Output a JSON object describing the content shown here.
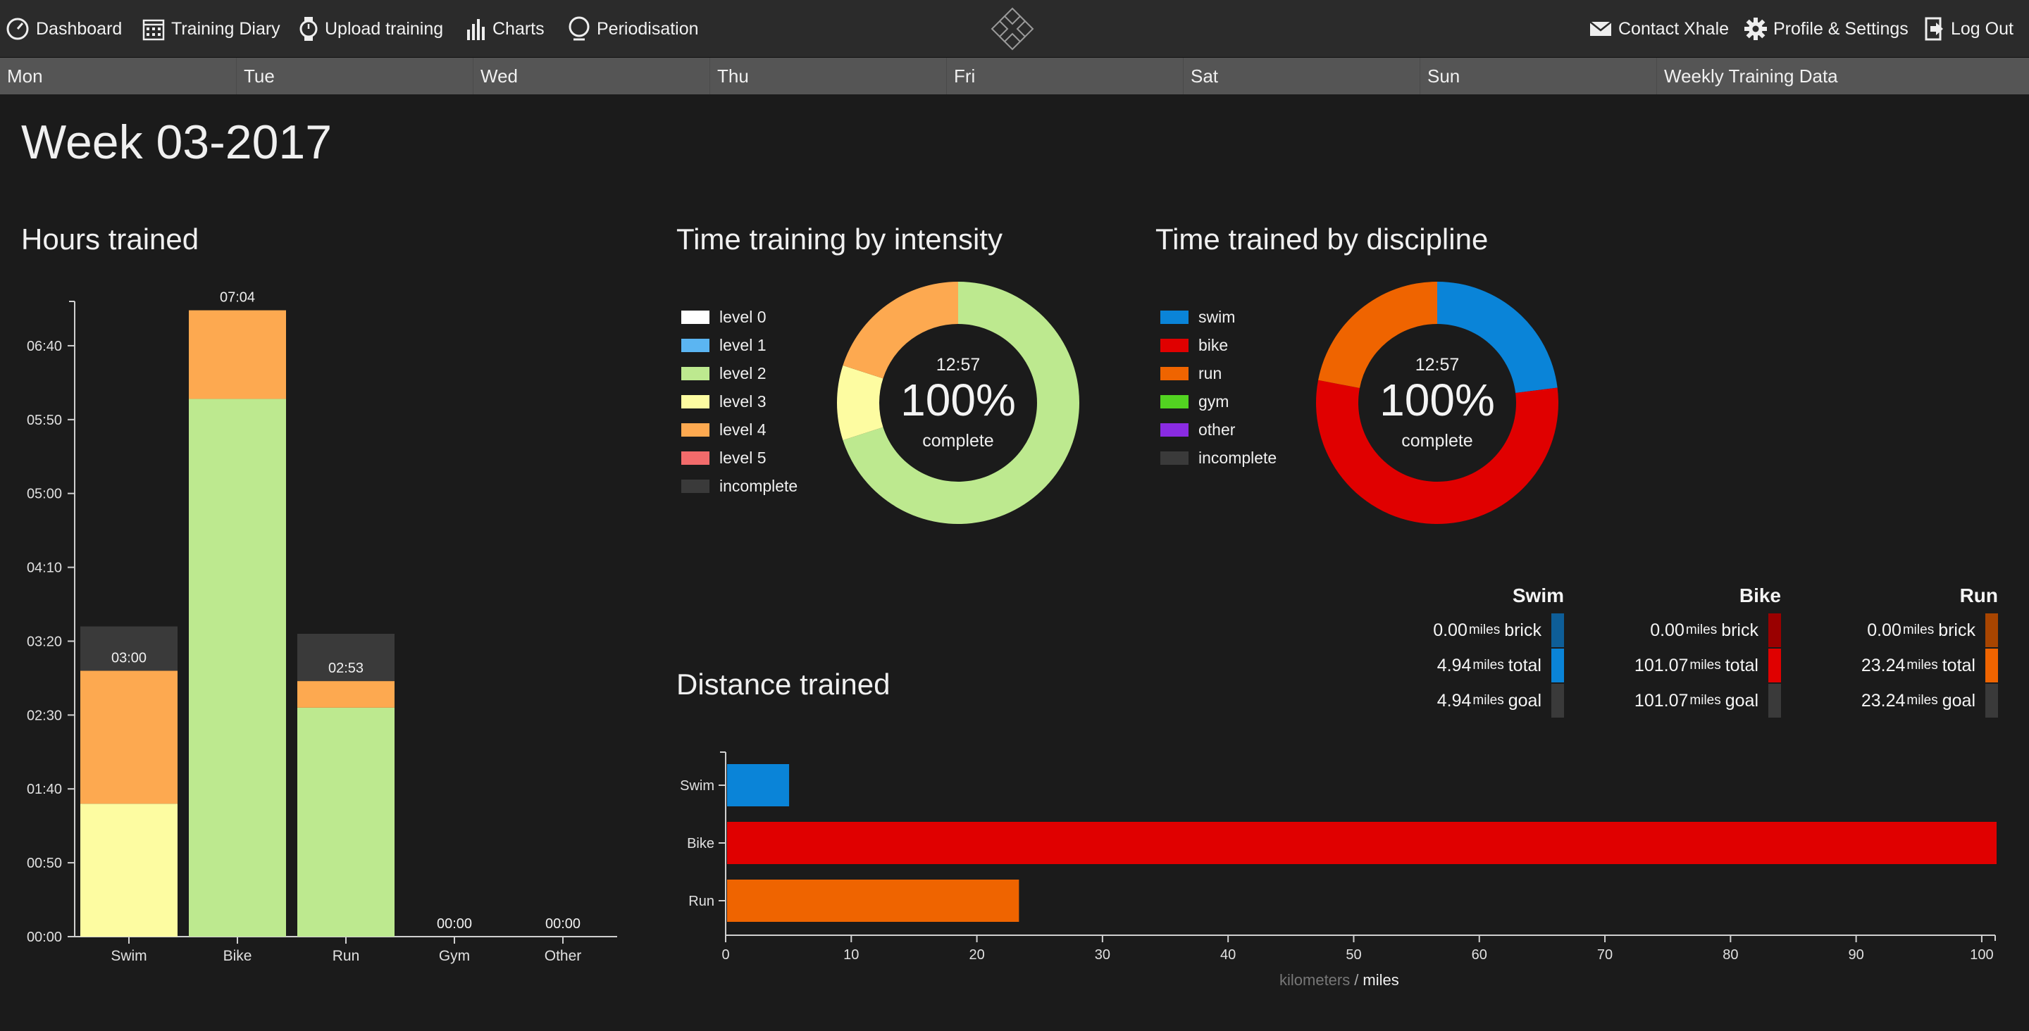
{
  "nav": {
    "dashboard": "Dashboard",
    "training_diary": "Training Diary",
    "upload_training": "Upload training",
    "charts": "Charts",
    "periodisation": "Periodisation",
    "contact": "Contact Xhale",
    "profile": "Profile & Settings",
    "logout": "Log Out"
  },
  "days": [
    "Mon",
    "Tue",
    "Wed",
    "Thu",
    "Fri",
    "Sat",
    "Sun",
    "Weekly Training Data"
  ],
  "week_title": "Week 03-2017",
  "hours": {
    "title": "Hours trained",
    "y_ticks": [
      "00:00",
      "00:50",
      "01:40",
      "02:30",
      "03:20",
      "04:10",
      "05:00",
      "05:50",
      "06:40"
    ]
  },
  "intensity": {
    "title": "Time training by intensity",
    "legend": [
      {
        "label": "level 0",
        "color": "#ffffff"
      },
      {
        "label": "level 1",
        "color": "#5bb5f2"
      },
      {
        "label": "level 2",
        "color": "#bde98f"
      },
      {
        "label": "level 3",
        "color": "#fdfca1"
      },
      {
        "label": "level 4",
        "color": "#fda950"
      },
      {
        "label": "level 5",
        "color": "#f26b6b"
      },
      {
        "label": "incomplete",
        "color": "#3a3a3a"
      }
    ],
    "center_time": "12:57",
    "center_pct": "100%",
    "center_label": "complete"
  },
  "discipline": {
    "title": "Time trained by discipline",
    "legend": [
      {
        "label": "swim",
        "color": "#0a84d8"
      },
      {
        "label": "bike",
        "color": "#e00000"
      },
      {
        "label": "run",
        "color": "#ef6400"
      },
      {
        "label": "gym",
        "color": "#52d321"
      },
      {
        "label": "other",
        "color": "#8a2be2"
      },
      {
        "label": "incomplete",
        "color": "#3a3a3a"
      }
    ],
    "center_time": "12:57",
    "center_pct": "100%",
    "center_label": "complete"
  },
  "stats": {
    "unit": "miles",
    "brick_label": "brick",
    "total_label": "total",
    "goal_label": "goal",
    "swim": {
      "title": "Swim",
      "brick": "0.00",
      "total": "4.94",
      "goal": "4.94"
    },
    "bike": {
      "title": "Bike",
      "brick": "0.00",
      "total": "101.07",
      "goal": "101.07"
    },
    "run": {
      "title": "Run",
      "brick": "0.00",
      "total": "23.24",
      "goal": "23.24"
    }
  },
  "distance": {
    "title": "Distance trained",
    "unit_km": "kilometers",
    "unit_sep": "/",
    "unit_miles": "miles"
  },
  "chart_data": [
    {
      "type": "bar",
      "title": "Hours trained",
      "categories": [
        "Swim",
        "Bike",
        "Run",
        "Gym",
        "Other"
      ],
      "value_labels": [
        "03:00",
        "07:04",
        "02:53",
        "00:00",
        "00:00"
      ],
      "ylim_minutes": [
        0,
        430
      ],
      "y_tick_minutes": [
        0,
        50,
        100,
        150,
        200,
        250,
        300,
        350,
        400
      ],
      "series": [
        {
          "name": "level 3",
          "color": "#fdfca1",
          "values_minutes": [
            90,
            0,
            0,
            0,
            0
          ]
        },
        {
          "name": "level 2",
          "color": "#bde98f",
          "values_minutes": [
            0,
            364,
            155,
            0,
            0
          ]
        },
        {
          "name": "level 4",
          "color": "#fda950",
          "values_minutes": [
            90,
            60,
            18,
            0,
            0
          ]
        },
        {
          "name": "incomplete",
          "color": "#3a3a3a",
          "values_minutes": [
            30,
            0,
            32,
            0,
            0
          ]
        }
      ]
    },
    {
      "type": "pie",
      "title": "Time training by intensity",
      "labels": [
        "level 2",
        "level 3",
        "level 4"
      ],
      "values": [
        70,
        10,
        20
      ],
      "colors": [
        "#bde98f",
        "#fdfca1",
        "#fda950"
      ]
    },
    {
      "type": "pie",
      "title": "Time trained by discipline",
      "labels": [
        "swim",
        "bike",
        "run"
      ],
      "values": [
        23,
        55,
        22
      ],
      "colors": [
        "#0a84d8",
        "#e00000",
        "#ef6400"
      ]
    },
    {
      "type": "bar",
      "orientation": "horizontal",
      "title": "Distance trained",
      "categories": [
        "Swim",
        "Bike",
        "Run"
      ],
      "values": [
        4.94,
        101.07,
        23.24
      ],
      "colors": [
        "#0a84d8",
        "#e00000",
        "#ef6400"
      ],
      "xlim": [
        0,
        101.07
      ],
      "x_ticks": [
        0,
        10,
        20,
        30,
        40,
        50,
        60,
        70,
        80,
        90,
        100
      ]
    }
  ]
}
